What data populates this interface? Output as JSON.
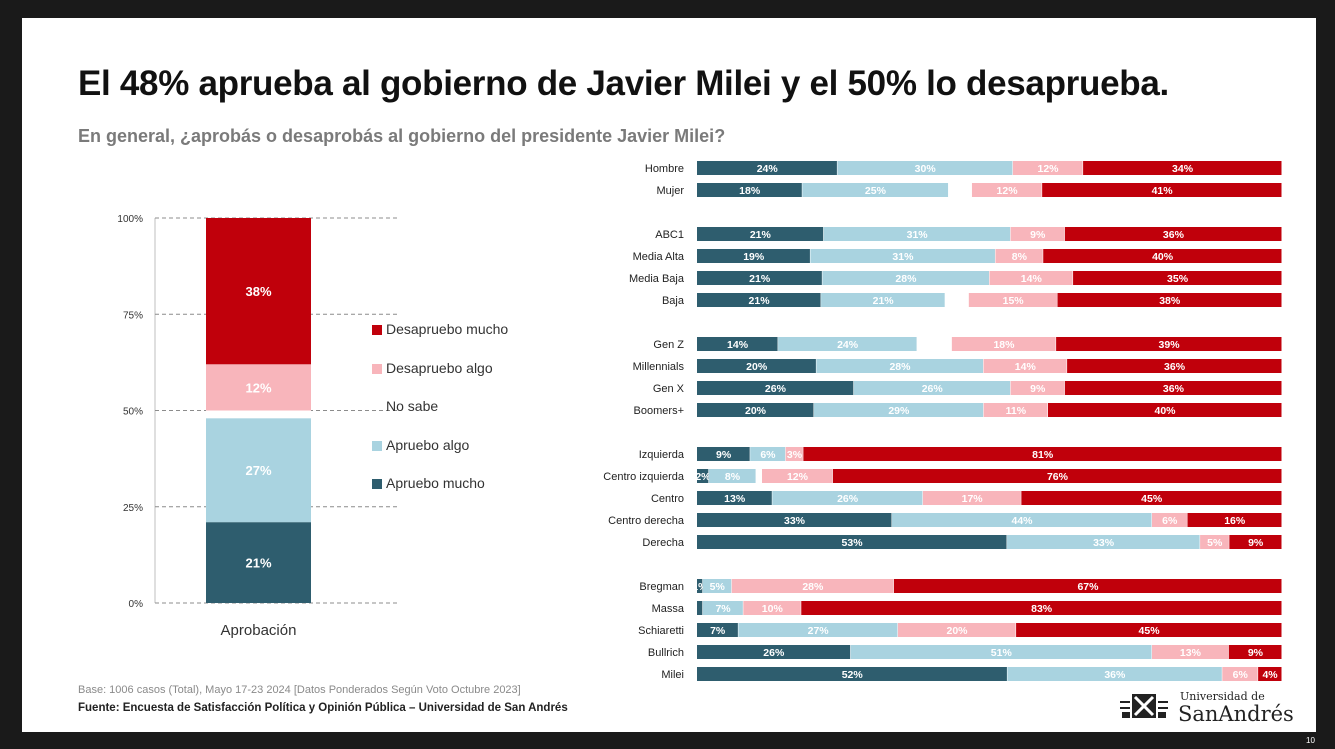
{
  "slide": {
    "title": "El 48% aprueba al gobierno de Javier Milei y el 50% lo desaprueba.",
    "subtitle": "En general, ¿aprobás o desaprobás al gobierno del presidente Javier Milei?",
    "base_note": "Base: 1006 casos (Total), Mayo 17-23 2024 [Datos Ponderados Según Voto Octubre 2023]",
    "source_note": "Fuente: Encuesta de Satisfacción Política y Opinión Pública – Universidad de San Andrés",
    "logo_small": "Universidad de",
    "logo_big": "SanAndrés",
    "logo_icon": "university-crest-icon",
    "page_number": "10"
  },
  "colors": {
    "apruebo_mucho": "#2e5d6e",
    "apruebo_algo": "#a9d3e0",
    "no_sabe": "#ffffff",
    "desapruebo_algo": "#f8b5bb",
    "desapruebo_mucho": "#c0000b"
  },
  "chart_data": [
    {
      "type": "bar",
      "stacked": true,
      "categories": [
        "Aprobación"
      ],
      "ylim": [
        0,
        100
      ],
      "yticks": [
        "0%",
        "25%",
        "50%",
        "75%",
        "100%"
      ],
      "grid": true,
      "legend_position": "right",
      "series": [
        {
          "name": "Apruebo mucho",
          "key": "apruebo_mucho",
          "values": [
            21
          ],
          "label": "21%"
        },
        {
          "name": "Apruebo algo",
          "key": "apruebo_algo",
          "values": [
            27
          ],
          "label": "27%"
        },
        {
          "name": "No sabe",
          "key": "no_sabe",
          "values": [
            2
          ],
          "label": ""
        },
        {
          "name": "Desapruebo algo",
          "key": "desapruebo_algo",
          "values": [
            12
          ],
          "label": "12%"
        },
        {
          "name": "Desapruebo mucho",
          "key": "desapruebo_mucho",
          "values": [
            38
          ],
          "label": "38%"
        }
      ],
      "legend_order": [
        "Desapruebo mucho",
        "Desapruebo algo",
        "No sabe",
        "Apruebo algo",
        "Apruebo mucho"
      ]
    },
    {
      "type": "bar",
      "orientation": "horizontal",
      "stacked": true,
      "xlim": [
        0,
        100
      ],
      "series_keys": [
        "apruebo_mucho",
        "apruebo_algo",
        "no_sabe",
        "desapruebo_algo",
        "desapruebo_mucho"
      ],
      "groups": [
        {
          "rows": [
            {
              "label": "Hombre",
              "values": [
                24,
                30,
                0,
                12,
                34
              ],
              "labels": [
                "24%",
                "30%",
                "",
                "12%",
                "34%"
              ]
            },
            {
              "label": "Mujer",
              "values": [
                18,
                25,
                4,
                12,
                41
              ],
              "labels": [
                "18%",
                "25%",
                "",
                "12%",
                "41%"
              ]
            }
          ]
        },
        {
          "rows": [
            {
              "label": "ABC1",
              "values": [
                21,
                31,
                0,
                9,
                36
              ],
              "labels": [
                "21%",
                "31%",
                "",
                "9%",
                "36%"
              ]
            },
            {
              "label": "Media Alta",
              "values": [
                19,
                31,
                0,
                8,
                40
              ],
              "labels": [
                "19%",
                "31%",
                "",
                "8%",
                "40%"
              ]
            },
            {
              "label": "Media Baja",
              "values": [
                21,
                28,
                0,
                14,
                35
              ],
              "labels": [
                "21%",
                "28%",
                "",
                "14%",
                "35%"
              ]
            },
            {
              "label": "Baja",
              "values": [
                21,
                21,
                4,
                15,
                38
              ],
              "labels": [
                "21%",
                "21%",
                "",
                "15%",
                "38%"
              ]
            }
          ]
        },
        {
          "rows": [
            {
              "label": "Gen Z",
              "values": [
                14,
                24,
                6,
                18,
                39
              ],
              "labels": [
                "14%",
                "24%",
                "",
                "18%",
                "39%"
              ]
            },
            {
              "label": "Millennials",
              "values": [
                20,
                28,
                0,
                14,
                36
              ],
              "labels": [
                "20%",
                "28%",
                "",
                "14%",
                "36%"
              ]
            },
            {
              "label": "Gen X",
              "values": [
                26,
                26,
                0,
                9,
                36
              ],
              "labels": [
                "26%",
                "26%",
                "",
                "9%",
                "36%"
              ]
            },
            {
              "label": "Boomers+",
              "values": [
                20,
                29,
                0,
                11,
                40
              ],
              "labels": [
                "20%",
                "29%",
                "",
                "11%",
                "40%"
              ]
            }
          ]
        },
        {
          "rows": [
            {
              "label": "Izquierda",
              "values": [
                9,
                6,
                0,
                3,
                81
              ],
              "labels": [
                "9%",
                "6%",
                "",
                "3%",
                "81%"
              ]
            },
            {
              "label": "Centro izquierda",
              "values": [
                2,
                8,
                1,
                12,
                76
              ],
              "labels": [
                "2%",
                "8%",
                "",
                "12%",
                "76%"
              ]
            },
            {
              "label": "Centro",
              "values": [
                13,
                26,
                0,
                17,
                45
              ],
              "labels": [
                "13%",
                "26%",
                "",
                "17%",
                "45%"
              ]
            },
            {
              "label": "Centro derecha",
              "values": [
                33,
                44,
                0,
                6,
                16
              ],
              "labels": [
                "33%",
                "44%",
                "",
                "6%",
                "16%"
              ]
            },
            {
              "label": "Derecha",
              "values": [
                53,
                33,
                0,
                5,
                9
              ],
              "labels": [
                "53%",
                "33%",
                "",
                "5%",
                "9%"
              ]
            }
          ]
        },
        {
          "rows": [
            {
              "label": "Bregman",
              "values": [
                1,
                5,
                0,
                28,
                67
              ],
              "labels": [
                "1%",
                "5%",
                "",
                "28%",
                "67%"
              ]
            },
            {
              "label": "Massa",
              "values": [
                1,
                7,
                0,
                10,
                83
              ],
              "labels": [
                "",
                "7%",
                "",
                "10%",
                "83%"
              ]
            },
            {
              "label": "Schiaretti",
              "values": [
                7,
                27,
                0,
                20,
                45
              ],
              "labels": [
                "7%",
                "27%",
                "",
                "20%",
                "45%"
              ]
            },
            {
              "label": "Bullrich",
              "values": [
                26,
                51,
                0,
                13,
                9
              ],
              "labels": [
                "26%",
                "51%",
                "",
                "13%",
                "9%"
              ]
            },
            {
              "label": "Milei",
              "values": [
                52,
                36,
                0,
                6,
                4
              ],
              "labels": [
                "52%",
                "36%",
                "",
                "6%",
                "4%"
              ]
            }
          ]
        }
      ]
    }
  ]
}
